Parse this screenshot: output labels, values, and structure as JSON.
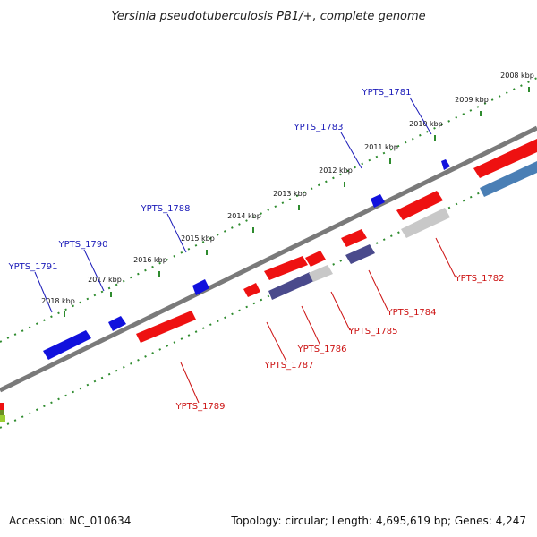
{
  "title": "Yersinia pseudotuberculosis PB1/+, complete genome",
  "kbp_ticks": [
    "2008 kbp",
    "2009 kbp",
    "2010 kbp",
    "2011 kbp",
    "2012 kbp",
    "2013 kbp",
    "2014 kbp",
    "2015 kbp",
    "2016 kbp",
    "2017 kbp",
    "2018 kbp"
  ],
  "genes_top": [
    "YPTS_1781",
    "YPTS_1783",
    "YPTS_1788",
    "YPTS_1790",
    "YPTS_1791"
  ],
  "genes_bottom": [
    "YPTS_1782",
    "YPTS_1784",
    "YPTS_1785",
    "YPTS_1786",
    "YPTS_1787",
    "YPTS_1789"
  ],
  "footer": {
    "accession": "Accession: NC_010634",
    "summary": "Topology: circular; Length: 4,695,619 bp; Genes: 4,247"
  },
  "colors": {
    "forward_cds": "#1111dd",
    "reverse_cds": "#ee1111",
    "grey_feature": "#c8c8c8",
    "purple_feature": "#4a4a8c",
    "steel_feature": "#4a7fb5",
    "backbone": "#777777",
    "tick_green": "#2e8b2e",
    "label_blue": "#1a1ab8",
    "label_red": "#cc1111"
  }
}
